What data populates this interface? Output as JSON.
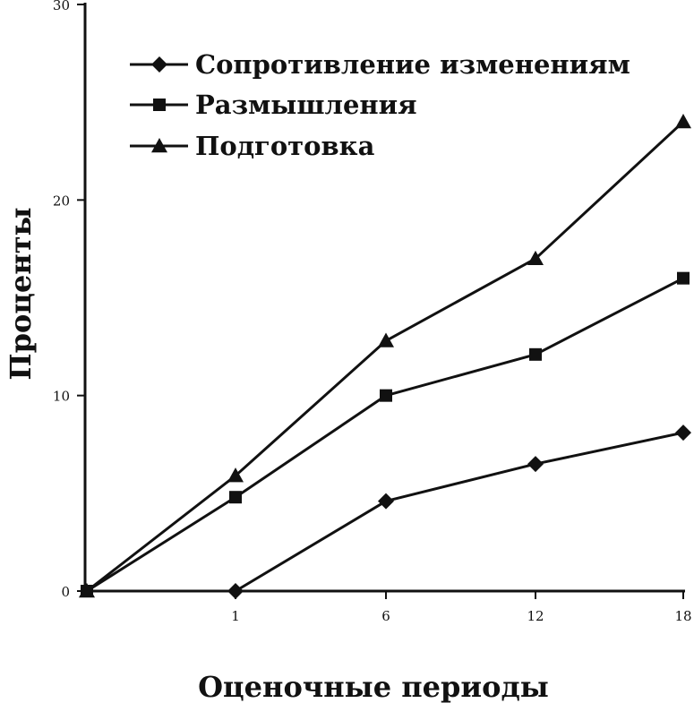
{
  "chart_data": {
    "type": "line",
    "xlabel": "Оценочные периоды",
    "ylabel": "Проценты",
    "x_ticks": [
      "1",
      "6",
      "12",
      "18"
    ],
    "y_ticks": [
      "0",
      "10",
      "20",
      "30"
    ],
    "ylim": [
      0,
      30
    ],
    "grid": false,
    "legend_position": "top-left",
    "series": [
      {
        "name": "Сопротивление изменениям",
        "marker": "diamond",
        "points": [
          {
            "x": "1",
            "y": 0
          },
          {
            "x": "6",
            "y": 4.6
          },
          {
            "x": "12",
            "y": 6.5
          },
          {
            "x": "18",
            "y": 8.1
          }
        ]
      },
      {
        "name": "Размышления",
        "marker": "square",
        "points": [
          {
            "x": "0",
            "y": 0
          },
          {
            "x": "1",
            "y": 4.8
          },
          {
            "x": "6",
            "y": 10.0
          },
          {
            "x": "12",
            "y": 12.1
          },
          {
            "x": "18",
            "y": 16.0
          }
        ]
      },
      {
        "name": "Подготовка",
        "marker": "triangle",
        "points": [
          {
            "x": "0",
            "y": 0
          },
          {
            "x": "1",
            "y": 5.9
          },
          {
            "x": "6",
            "y": 12.8
          },
          {
            "x": "12",
            "y": 17.0
          },
          {
            "x": "18",
            "y": 24.0
          }
        ]
      }
    ]
  }
}
